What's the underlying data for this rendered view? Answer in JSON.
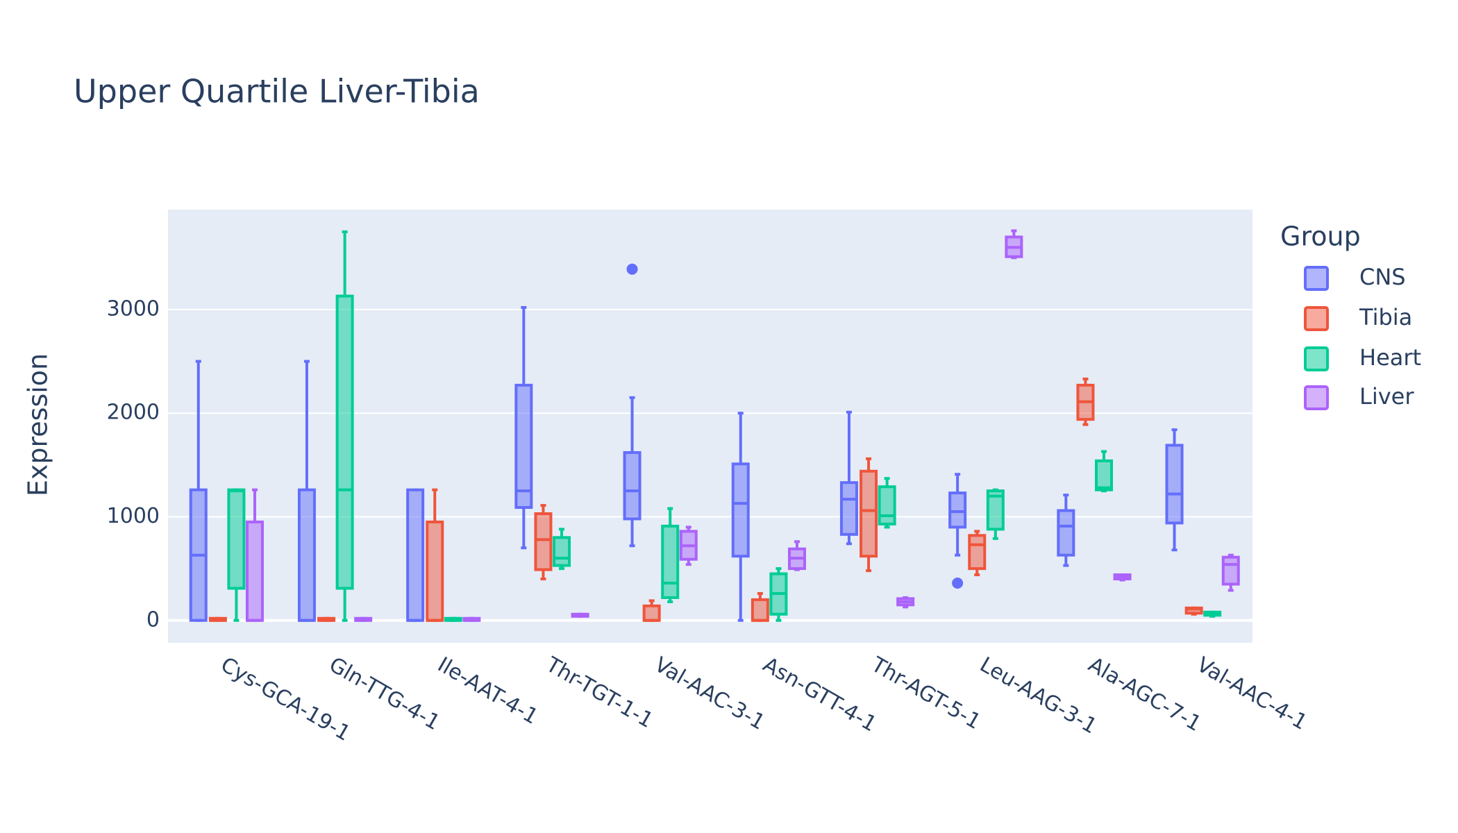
{
  "chart_data": {
    "type": "box",
    "title": "Upper Quartile Liver-Tibia",
    "y_label": "Expression",
    "legend_title": "Group",
    "legend_position": "right",
    "categories": [
      "Cys-GCA-19-1",
      "Gln-TTG-4-1",
      "Ile-AAT-4-1",
      "Thr-TGT-1-1",
      "Val-AAC-3-1",
      "Asn-GTT-4-1",
      "Thr-AGT-5-1",
      "Leu-AAG-3-1",
      "Ala-AGC-7-1",
      "Val-AAC-4-1"
    ],
    "ylim": [
      -216,
      3964
    ],
    "yticks": [
      0,
      1000,
      2000,
      3000
    ],
    "grid": true,
    "series": [
      {
        "name": "CNS",
        "color": "#636efa",
        "min": [
          0,
          0,
          0,
          700,
          720,
          0,
          740,
          630,
          530,
          680
        ],
        "q1": [
          0,
          0,
          0,
          1090,
          980,
          620,
          830,
          900,
          630,
          940
        ],
        "median": [
          630,
          0,
          0,
          1250,
          1250,
          1130,
          1170,
          1050,
          910,
          1220
        ],
        "q3": [
          1260,
          1260,
          1260,
          2270,
          1620,
          1510,
          1330,
          1230,
          1060,
          1690
        ],
        "max": [
          2500,
          2500,
          1260,
          3020,
          2150,
          2000,
          2010,
          1410,
          1210,
          1840
        ],
        "outliers": [
          [],
          [],
          [],
          [],
          [
            3390
          ],
          [],
          [],
          [
            360
          ],
          [],
          []
        ]
      },
      {
        "name": "Tibia",
        "color": "#EF553B",
        "min": [
          0,
          0,
          0,
          400,
          0,
          0,
          480,
          440,
          1890,
          60
        ],
        "q1": [
          0,
          0,
          0,
          490,
          0,
          0,
          620,
          500,
          1940,
          70
        ],
        "median": [
          0,
          0,
          0,
          780,
          0,
          0,
          1060,
          730,
          2110,
          110
        ],
        "q3": [
          20,
          20,
          950,
          1030,
          140,
          200,
          1440,
          820,
          2270,
          120
        ],
        "max": [
          20,
          20,
          1260,
          1110,
          190,
          260,
          1560,
          860,
          2330,
          120
        ]
      },
      {
        "name": "Heart",
        "color": "#00cc96",
        "min": [
          0,
          0,
          0,
          500,
          180,
          0,
          900,
          790,
          1250,
          40
        ],
        "q1": [
          310,
          310,
          0,
          530,
          220,
          60,
          930,
          880,
          1260,
          50
        ],
        "median": [
          1250,
          1260,
          0,
          600,
          360,
          260,
          1010,
          1200,
          1280,
          70
        ],
        "q3": [
          1260,
          3130,
          20,
          800,
          910,
          450,
          1290,
          1250,
          1540,
          80
        ],
        "max": [
          1260,
          3750,
          20,
          880,
          1080,
          500,
          1370,
          1260,
          1630,
          80
        ]
      },
      {
        "name": "Liver",
        "color": "#ab63fa",
        "min": [
          0,
          0,
          0,
          40,
          540,
          490,
          130,
          3500,
          390,
          290
        ],
        "q1": [
          0,
          0,
          0,
          40,
          590,
          500,
          150,
          3510,
          400,
          350
        ],
        "median": [
          0,
          0,
          0,
          50,
          720,
          600,
          180,
          3600,
          420,
          540
        ],
        "q3": [
          950,
          20,
          20,
          60,
          860,
          690,
          210,
          3700,
          440,
          610
        ],
        "max": [
          1260,
          20,
          20,
          60,
          900,
          760,
          220,
          3760,
          440,
          630
        ]
      }
    ]
  }
}
